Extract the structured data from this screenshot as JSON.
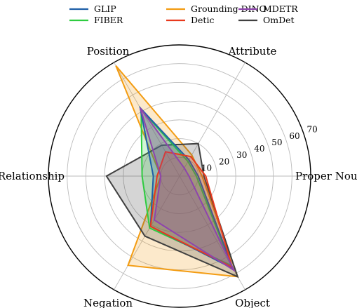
{
  "chart_data": {
    "type": "radar",
    "axes": [
      "Position",
      "Attribute",
      "Proper Noun",
      "Object",
      "Negation",
      "Relationship"
    ],
    "rlim": [
      0,
      70
    ],
    "radial_ticks": [
      10,
      20,
      30,
      40,
      50,
      60,
      70
    ],
    "radial_tick_labels": [
      "10",
      "20",
      "30",
      "40",
      "50",
      "60",
      "70"
    ],
    "grid": true,
    "legend": {
      "placement": "top",
      "columns": 3,
      "entries": [
        "GLIP",
        "FIBER",
        "Grounding DINO",
        "Detic",
        "MDETR",
        "OmDet"
      ]
    },
    "series": [
      {
        "name": "Grounding DINO",
        "color": "#f39c12",
        "values": [
          68,
          13,
          12,
          62,
          55,
          10
        ]
      },
      {
        "name": "OmDet",
        "color": "#404040",
        "values": [
          19,
          20,
          13,
          62,
          37,
          39
        ]
      },
      {
        "name": "FIBER",
        "color": "#2ecc40",
        "values": [
          41,
          9,
          9,
          55,
          32,
          20
        ]
      },
      {
        "name": "GLIP",
        "color": "#1f5fa8",
        "values": [
          42,
          10,
          10,
          57,
          31,
          14
        ]
      },
      {
        "name": "Detic",
        "color": "#e8391d",
        "values": [
          15,
          12,
          14,
          56,
          31,
          12
        ]
      },
      {
        "name": "MDETR",
        "color": "#8e44ad",
        "values": [
          42,
          5,
          5,
          58,
          27,
          10
        ]
      }
    ]
  }
}
